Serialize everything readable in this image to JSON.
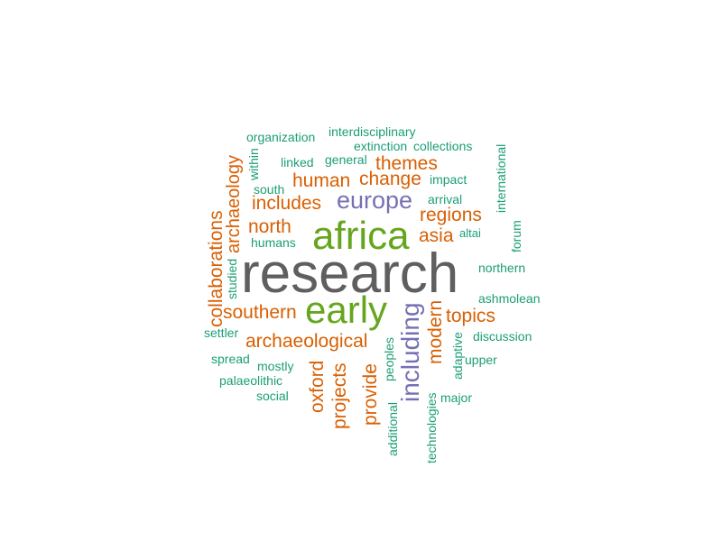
{
  "colors": {
    "gray": "#5f5f5f",
    "green": "#66a61e",
    "purple": "#7570b3",
    "orange": "#d95f02",
    "teal": "#1b9e77"
  },
  "words": [
    {
      "text": "research",
      "color": "gray"
    },
    {
      "text": "africa",
      "color": "green"
    },
    {
      "text": "early",
      "color": "green"
    },
    {
      "text": "europe",
      "color": "purple"
    },
    {
      "text": "including",
      "color": "purple"
    },
    {
      "text": "themes",
      "color": "orange"
    },
    {
      "text": "human",
      "color": "orange"
    },
    {
      "text": "change",
      "color": "orange"
    },
    {
      "text": "includes",
      "color": "orange"
    },
    {
      "text": "regions",
      "color": "orange"
    },
    {
      "text": "north",
      "color": "orange"
    },
    {
      "text": "asia",
      "color": "orange"
    },
    {
      "text": "southern",
      "color": "orange"
    },
    {
      "text": "topics",
      "color": "orange"
    },
    {
      "text": "archaeological",
      "color": "orange"
    },
    {
      "text": "modern",
      "color": "orange"
    },
    {
      "text": "archaeology",
      "color": "orange"
    },
    {
      "text": "collaborations",
      "color": "orange"
    },
    {
      "text": "oxford",
      "color": "orange"
    },
    {
      "text": "projects",
      "color": "orange"
    },
    {
      "text": "provide",
      "color": "orange"
    },
    {
      "text": "interdisciplinary",
      "color": "teal"
    },
    {
      "text": "organization",
      "color": "teal"
    },
    {
      "text": "extinction",
      "color": "teal"
    },
    {
      "text": "collections",
      "color": "teal"
    },
    {
      "text": "linked",
      "color": "teal"
    },
    {
      "text": "general",
      "color": "teal"
    },
    {
      "text": "impact",
      "color": "teal"
    },
    {
      "text": "south",
      "color": "teal"
    },
    {
      "text": "arrival",
      "color": "teal"
    },
    {
      "text": "altai",
      "color": "teal"
    },
    {
      "text": "humans",
      "color": "teal"
    },
    {
      "text": "northern",
      "color": "teal"
    },
    {
      "text": "ashmolean",
      "color": "teal"
    },
    {
      "text": "settler",
      "color": "teal"
    },
    {
      "text": "discussion",
      "color": "teal"
    },
    {
      "text": "spread",
      "color": "teal"
    },
    {
      "text": "mostly",
      "color": "teal"
    },
    {
      "text": "upper",
      "color": "teal"
    },
    {
      "text": "palaeolithic",
      "color": "teal"
    },
    {
      "text": "social",
      "color": "teal"
    },
    {
      "text": "major",
      "color": "teal"
    },
    {
      "text": "within",
      "color": "teal"
    },
    {
      "text": "international",
      "color": "teal"
    },
    {
      "text": "forum",
      "color": "teal"
    },
    {
      "text": "studied",
      "color": "teal"
    },
    {
      "text": "peoples",
      "color": "teal"
    },
    {
      "text": "adaptive",
      "color": "teal"
    },
    {
      "text": "additional",
      "color": "teal"
    },
    {
      "text": "technologies",
      "color": "teal"
    }
  ]
}
